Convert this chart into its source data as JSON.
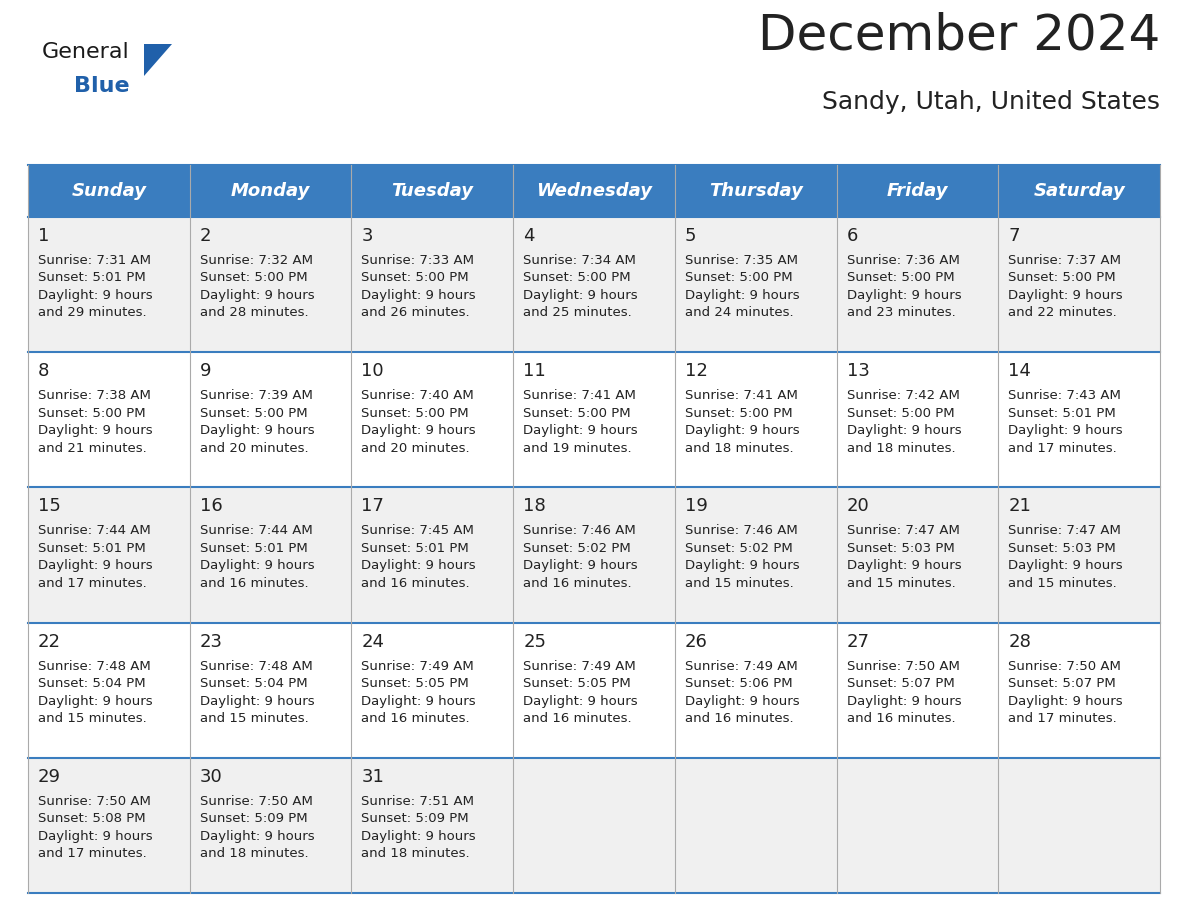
{
  "title": "December 2024",
  "subtitle": "Sandy, Utah, United States",
  "header_color": "#3A7DBF",
  "header_text_color": "#FFFFFF",
  "day_names": [
    "Sunday",
    "Monday",
    "Tuesday",
    "Wednesday",
    "Thursday",
    "Friday",
    "Saturday"
  ],
  "cell_bg_odd": "#F0F0F0",
  "cell_bg_even": "#FFFFFF",
  "cell_border_color": "#3A7DBF",
  "grid_color": "#AAAAAA",
  "text_color": "#222222",
  "title_fontsize": 36,
  "subtitle_fontsize": 18,
  "day_num_fontsize": 13,
  "cell_text_fontsize": 9.5,
  "header_fontsize": 13,
  "logo_color_general": "#1a1a1a",
  "logo_color_blue": "#2060AA",
  "logo_triangle_color": "#2060AA",
  "days": [
    {
      "day": 1,
      "col": 0,
      "row": 0,
      "sunrise": "7:31 AM",
      "sunset": "5:01 PM",
      "daylight_l1": "9 hours",
      "daylight_l2": "and 29 minutes."
    },
    {
      "day": 2,
      "col": 1,
      "row": 0,
      "sunrise": "7:32 AM",
      "sunset": "5:00 PM",
      "daylight_l1": "9 hours",
      "daylight_l2": "and 28 minutes."
    },
    {
      "day": 3,
      "col": 2,
      "row": 0,
      "sunrise": "7:33 AM",
      "sunset": "5:00 PM",
      "daylight_l1": "9 hours",
      "daylight_l2": "and 26 minutes."
    },
    {
      "day": 4,
      "col": 3,
      "row": 0,
      "sunrise": "7:34 AM",
      "sunset": "5:00 PM",
      "daylight_l1": "9 hours",
      "daylight_l2": "and 25 minutes."
    },
    {
      "day": 5,
      "col": 4,
      "row": 0,
      "sunrise": "7:35 AM",
      "sunset": "5:00 PM",
      "daylight_l1": "9 hours",
      "daylight_l2": "and 24 minutes."
    },
    {
      "day": 6,
      "col": 5,
      "row": 0,
      "sunrise": "7:36 AM",
      "sunset": "5:00 PM",
      "daylight_l1": "9 hours",
      "daylight_l2": "and 23 minutes."
    },
    {
      "day": 7,
      "col": 6,
      "row": 0,
      "sunrise": "7:37 AM",
      "sunset": "5:00 PM",
      "daylight_l1": "9 hours",
      "daylight_l2": "and 22 minutes."
    },
    {
      "day": 8,
      "col": 0,
      "row": 1,
      "sunrise": "7:38 AM",
      "sunset": "5:00 PM",
      "daylight_l1": "9 hours",
      "daylight_l2": "and 21 minutes."
    },
    {
      "day": 9,
      "col": 1,
      "row": 1,
      "sunrise": "7:39 AM",
      "sunset": "5:00 PM",
      "daylight_l1": "9 hours",
      "daylight_l2": "and 20 minutes."
    },
    {
      "day": 10,
      "col": 2,
      "row": 1,
      "sunrise": "7:40 AM",
      "sunset": "5:00 PM",
      "daylight_l1": "9 hours",
      "daylight_l2": "and 20 minutes."
    },
    {
      "day": 11,
      "col": 3,
      "row": 1,
      "sunrise": "7:41 AM",
      "sunset": "5:00 PM",
      "daylight_l1": "9 hours",
      "daylight_l2": "and 19 minutes."
    },
    {
      "day": 12,
      "col": 4,
      "row": 1,
      "sunrise": "7:41 AM",
      "sunset": "5:00 PM",
      "daylight_l1": "9 hours",
      "daylight_l2": "and 18 minutes."
    },
    {
      "day": 13,
      "col": 5,
      "row": 1,
      "sunrise": "7:42 AM",
      "sunset": "5:00 PM",
      "daylight_l1": "9 hours",
      "daylight_l2": "and 18 minutes."
    },
    {
      "day": 14,
      "col": 6,
      "row": 1,
      "sunrise": "7:43 AM",
      "sunset": "5:01 PM",
      "daylight_l1": "9 hours",
      "daylight_l2": "and 17 minutes."
    },
    {
      "day": 15,
      "col": 0,
      "row": 2,
      "sunrise": "7:44 AM",
      "sunset": "5:01 PM",
      "daylight_l1": "9 hours",
      "daylight_l2": "and 17 minutes."
    },
    {
      "day": 16,
      "col": 1,
      "row": 2,
      "sunrise": "7:44 AM",
      "sunset": "5:01 PM",
      "daylight_l1": "9 hours",
      "daylight_l2": "and 16 minutes."
    },
    {
      "day": 17,
      "col": 2,
      "row": 2,
      "sunrise": "7:45 AM",
      "sunset": "5:01 PM",
      "daylight_l1": "9 hours",
      "daylight_l2": "and 16 minutes."
    },
    {
      "day": 18,
      "col": 3,
      "row": 2,
      "sunrise": "7:46 AM",
      "sunset": "5:02 PM",
      "daylight_l1": "9 hours",
      "daylight_l2": "and 16 minutes."
    },
    {
      "day": 19,
      "col": 4,
      "row": 2,
      "sunrise": "7:46 AM",
      "sunset": "5:02 PM",
      "daylight_l1": "9 hours",
      "daylight_l2": "and 15 minutes."
    },
    {
      "day": 20,
      "col": 5,
      "row": 2,
      "sunrise": "7:47 AM",
      "sunset": "5:03 PM",
      "daylight_l1": "9 hours",
      "daylight_l2": "and 15 minutes."
    },
    {
      "day": 21,
      "col": 6,
      "row": 2,
      "sunrise": "7:47 AM",
      "sunset": "5:03 PM",
      "daylight_l1": "9 hours",
      "daylight_l2": "and 15 minutes."
    },
    {
      "day": 22,
      "col": 0,
      "row": 3,
      "sunrise": "7:48 AM",
      "sunset": "5:04 PM",
      "daylight_l1": "9 hours",
      "daylight_l2": "and 15 minutes."
    },
    {
      "day": 23,
      "col": 1,
      "row": 3,
      "sunrise": "7:48 AM",
      "sunset": "5:04 PM",
      "daylight_l1": "9 hours",
      "daylight_l2": "and 15 minutes."
    },
    {
      "day": 24,
      "col": 2,
      "row": 3,
      "sunrise": "7:49 AM",
      "sunset": "5:05 PM",
      "daylight_l1": "9 hours",
      "daylight_l2": "and 16 minutes."
    },
    {
      "day": 25,
      "col": 3,
      "row": 3,
      "sunrise": "7:49 AM",
      "sunset": "5:05 PM",
      "daylight_l1": "9 hours",
      "daylight_l2": "and 16 minutes."
    },
    {
      "day": 26,
      "col": 4,
      "row": 3,
      "sunrise": "7:49 AM",
      "sunset": "5:06 PM",
      "daylight_l1": "9 hours",
      "daylight_l2": "and 16 minutes."
    },
    {
      "day": 27,
      "col": 5,
      "row": 3,
      "sunrise": "7:50 AM",
      "sunset": "5:07 PM",
      "daylight_l1": "9 hours",
      "daylight_l2": "and 16 minutes."
    },
    {
      "day": 28,
      "col": 6,
      "row": 3,
      "sunrise": "7:50 AM",
      "sunset": "5:07 PM",
      "daylight_l1": "9 hours",
      "daylight_l2": "and 17 minutes."
    },
    {
      "day": 29,
      "col": 0,
      "row": 4,
      "sunrise": "7:50 AM",
      "sunset": "5:08 PM",
      "daylight_l1": "9 hours",
      "daylight_l2": "and 17 minutes."
    },
    {
      "day": 30,
      "col": 1,
      "row": 4,
      "sunrise": "7:50 AM",
      "sunset": "5:09 PM",
      "daylight_l1": "9 hours",
      "daylight_l2": "and 18 minutes."
    },
    {
      "day": 31,
      "col": 2,
      "row": 4,
      "sunrise": "7:51 AM",
      "sunset": "5:09 PM",
      "daylight_l1": "9 hours",
      "daylight_l2": "and 18 minutes."
    }
  ]
}
